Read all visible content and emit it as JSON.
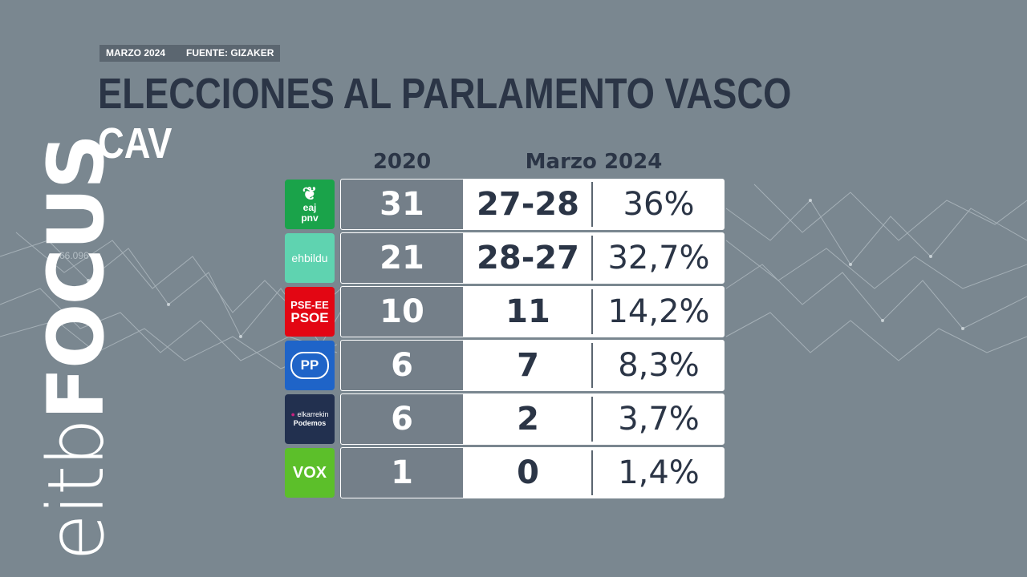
{
  "header": {
    "date_tag": "MARZO 2024",
    "source_tag": "FUENTE: GIZAKER",
    "title": "ELECCIONES AL PARLAMENTO VASCO",
    "subtitle": "CAV"
  },
  "brand": {
    "logo_light": "eitb",
    "logo_bold": "FOCUS"
  },
  "background": {
    "watermark_text_left": "66.096"
  },
  "table": {
    "col_2020": "2020",
    "col_2024": "Marzo 2024",
    "rows": [
      {
        "party": "EAJ-PNV",
        "logo_line1": "eaj",
        "logo_line2": "pnv",
        "logo_color": "#1aa34a",
        "seats_2020": "31",
        "seats_2024": "27-28",
        "pct_2024": "36%"
      },
      {
        "party": "EH Bildu",
        "logo_text": "ehbildu",
        "logo_color": "#5fd3b0",
        "seats_2020": "21",
        "seats_2024": "28-27",
        "pct_2024": "32,7%"
      },
      {
        "party": "PSE-EE PSOE",
        "logo_line1": "PSE-EE",
        "logo_line2": "PSOE",
        "logo_color": "#e30613",
        "seats_2020": "10",
        "seats_2024": "11",
        "pct_2024": "14,2%"
      },
      {
        "party": "PP",
        "logo_text": "PP",
        "logo_color": "#1f64c8",
        "seats_2020": "6",
        "seats_2024": "7",
        "pct_2024": "8,3%"
      },
      {
        "party": "Elkarrekin Podemos",
        "logo_line1": "elkarrekin",
        "logo_line2": "Podemos",
        "logo_color": "#22304f",
        "seats_2020": "6",
        "seats_2024": "2",
        "pct_2024": "3,7%"
      },
      {
        "party": "VOX",
        "logo_text": "VOX",
        "logo_color": "#5cbf2a",
        "seats_2020": "1",
        "seats_2024": "0",
        "pct_2024": "1,4%"
      }
    ]
  }
}
